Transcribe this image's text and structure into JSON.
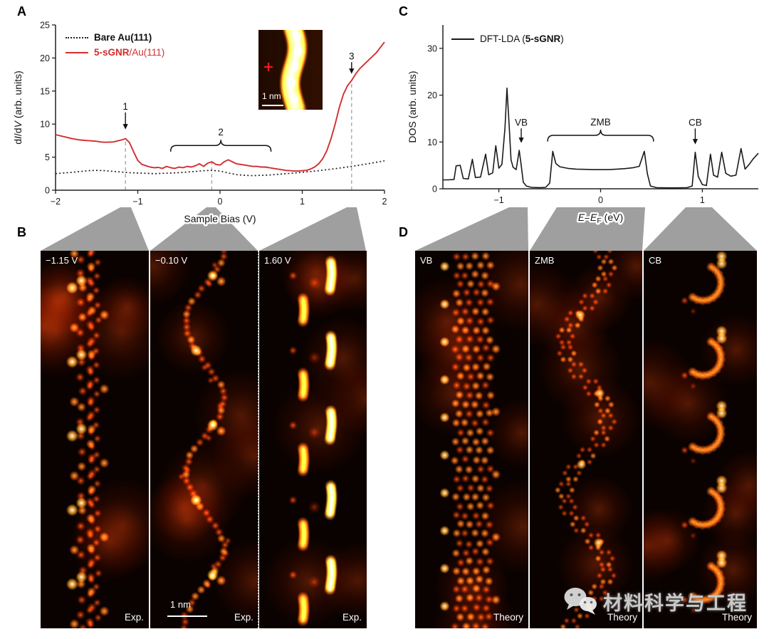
{
  "figure": {
    "panel_labels": {
      "a": "A",
      "b": "B",
      "c": "C",
      "d": "D"
    }
  },
  "panel_a": {
    "legend": [
      {
        "bold": "Bare Au(111)",
        "rest": "",
        "color": "#1a1a1a",
        "line": "dotted"
      },
      {
        "bold": "5-sGNR",
        "rest": "/Au(111)",
        "color": "#d42e2e",
        "line": "solid"
      }
    ],
    "inset": {
      "scale_label": "1 nm",
      "marker": "red-cross"
    }
  },
  "panel_c": {
    "legend": {
      "pre": "DFT-LDA (",
      "bold": "5-sGNR",
      "post": ")"
    }
  },
  "chart_data": [
    {
      "id": "didv",
      "type": "line",
      "xlabel": "Sample Bias (V)",
      "ylabel": "dI/dV (arb. units)",
      "xlabel_parts": [
        {
          "t": "Sample Bias (V)"
        }
      ],
      "ylabel_parts": [
        {
          "t": "d"
        },
        {
          "t": "I",
          "i": true
        },
        {
          "t": "/d"
        },
        {
          "t": "V",
          "i": true
        },
        {
          "t": " (arb. units)"
        }
      ],
      "xlim": [
        -2,
        2
      ],
      "ylim": [
        0,
        25
      ],
      "xticks": [
        {
          "v": -2,
          "label": "−2"
        },
        {
          "v": -1,
          "label": "−1"
        },
        {
          "v": 0,
          "label": "0"
        },
        {
          "v": 1,
          "label": "1"
        },
        {
          "v": 2,
          "label": "2"
        }
      ],
      "yticks": [
        {
          "v": 0,
          "label": "0"
        },
        {
          "v": 5,
          "label": "5"
        },
        {
          "v": 10,
          "label": "10"
        },
        {
          "v": 15,
          "label": "15"
        },
        {
          "v": 20,
          "label": "20"
        },
        {
          "v": 25,
          "label": "25"
        }
      ],
      "series": [
        {
          "name": "Bare Au(111)",
          "color": "#222222",
          "dash": "dotted",
          "width": 1.7,
          "points": [
            [
              -2,
              2.5
            ],
            [
              -1.8,
              2.7
            ],
            [
              -1.6,
              2.95
            ],
            [
              -1.5,
              3.0
            ],
            [
              -1.4,
              2.95
            ],
            [
              -1.3,
              2.85
            ],
            [
              -1.2,
              2.75
            ],
            [
              -1.1,
              2.65
            ],
            [
              -1.0,
              2.6
            ],
            [
              -0.9,
              2.55
            ],
            [
              -0.8,
              2.5
            ],
            [
              -0.7,
              2.55
            ],
            [
              -0.6,
              2.6
            ],
            [
              -0.5,
              2.65
            ],
            [
              -0.4,
              2.75
            ],
            [
              -0.3,
              2.85
            ],
            [
              -0.2,
              2.95
            ],
            [
              -0.1,
              3.0
            ],
            [
              0,
              2.9
            ],
            [
              0.1,
              2.6
            ],
            [
              0.2,
              2.35
            ],
            [
              0.3,
              2.25
            ],
            [
              0.4,
              2.2
            ],
            [
              0.5,
              2.25
            ],
            [
              0.6,
              2.3
            ],
            [
              0.7,
              2.4
            ],
            [
              0.8,
              2.5
            ],
            [
              0.9,
              2.6
            ],
            [
              1.0,
              2.7
            ],
            [
              1.2,
              2.95
            ],
            [
              1.4,
              3.25
            ],
            [
              1.6,
              3.6
            ],
            [
              1.8,
              4.0
            ],
            [
              2.0,
              4.45
            ]
          ]
        },
        {
          "name": "5-sGNR/Au(111)",
          "color": "#d42e2e",
          "dash": "solid",
          "width": 1.9,
          "points": [
            [
              -2,
              8.4
            ],
            [
              -1.9,
              8.1
            ],
            [
              -1.8,
              7.8
            ],
            [
              -1.7,
              7.6
            ],
            [
              -1.6,
              7.5
            ],
            [
              -1.5,
              7.4
            ],
            [
              -1.45,
              7.3
            ],
            [
              -1.4,
              7.25
            ],
            [
              -1.3,
              7.3
            ],
            [
              -1.25,
              7.45
            ],
            [
              -1.2,
              7.6
            ],
            [
              -1.15,
              7.8
            ],
            [
              -1.1,
              7.2
            ],
            [
              -1.05,
              5.8
            ],
            [
              -1.0,
              4.5
            ],
            [
              -0.95,
              3.9
            ],
            [
              -0.9,
              3.7
            ],
            [
              -0.85,
              3.5
            ],
            [
              -0.8,
              3.4
            ],
            [
              -0.75,
              3.45
            ],
            [
              -0.7,
              3.3
            ],
            [
              -0.65,
              3.6
            ],
            [
              -0.6,
              3.4
            ],
            [
              -0.55,
              3.3
            ],
            [
              -0.5,
              3.5
            ],
            [
              -0.45,
              3.4
            ],
            [
              -0.4,
              3.6
            ],
            [
              -0.35,
              3.5
            ],
            [
              -0.3,
              3.7
            ],
            [
              -0.25,
              4.0
            ],
            [
              -0.2,
              3.6
            ],
            [
              -0.15,
              4.1
            ],
            [
              -0.1,
              4.3
            ],
            [
              -0.05,
              3.9
            ],
            [
              0,
              3.8
            ],
            [
              0.05,
              4.3
            ],
            [
              0.1,
              4.6
            ],
            [
              0.15,
              4.3
            ],
            [
              0.2,
              4.0
            ],
            [
              0.25,
              3.9
            ],
            [
              0.3,
              3.8
            ],
            [
              0.35,
              3.7
            ],
            [
              0.4,
              3.6
            ],
            [
              0.45,
              3.6
            ],
            [
              0.5,
              3.5
            ],
            [
              0.55,
              3.5
            ],
            [
              0.6,
              3.4
            ],
            [
              0.65,
              3.3
            ],
            [
              0.7,
              3.2
            ],
            [
              0.75,
              3.1
            ],
            [
              0.8,
              3.0
            ],
            [
              0.85,
              2.95
            ],
            [
              0.9,
              2.9
            ],
            [
              0.95,
              2.9
            ],
            [
              1.0,
              2.95
            ],
            [
              1.05,
              3.0
            ],
            [
              1.1,
              3.2
            ],
            [
              1.15,
              3.5
            ],
            [
              1.2,
              4.0
            ],
            [
              1.25,
              4.8
            ],
            [
              1.3,
              6.0
            ],
            [
              1.35,
              7.8
            ],
            [
              1.4,
              10.0
            ],
            [
              1.45,
              12.5
            ],
            [
              1.5,
              14.5
            ],
            [
              1.55,
              15.8
            ],
            [
              1.6,
              16.6
            ],
            [
              1.65,
              17.6
            ],
            [
              1.7,
              18.4
            ],
            [
              1.75,
              19.0
            ],
            [
              1.8,
              19.6
            ],
            [
              1.85,
              20.2
            ],
            [
              1.9,
              20.8
            ],
            [
              1.95,
              21.6
            ],
            [
              2.0,
              22.4
            ]
          ]
        }
      ],
      "annotations": {
        "arrows": [
          {
            "label": "1",
            "x": -1.15,
            "label_y": 12.2,
            "tip_y": 9.2
          },
          {
            "label": "3",
            "x": 1.6,
            "label_y": 19.8,
            "tip_y": 17.6
          }
        ],
        "brace": {
          "label": "2",
          "x1": -0.6,
          "x2": 0.62,
          "y": 5.9
        },
        "guides": [
          {
            "x": -1.15,
            "y_top": 7.7
          },
          {
            "x": -0.1,
            "y_top": 4.3
          },
          {
            "x": 1.6,
            "y_top": 16.6
          }
        ]
      }
    },
    {
      "id": "dos",
      "type": "line",
      "xlabel": "E–EF (eV)",
      "ylabel": "DOS (arb. units)",
      "xlabel_parts": [
        {
          "t": "E",
          "i": true
        },
        {
          "t": "–"
        },
        {
          "t": "E",
          "i": true
        },
        {
          "t": "F",
          "sub": true
        },
        {
          "t": " (eV)"
        }
      ],
      "ylabel_parts": [
        {
          "t": "DOS (arb. units)"
        }
      ],
      "xlim": [
        -1.55,
        1.55
      ],
      "ylim": [
        0,
        35
      ],
      "xticks": [
        {
          "v": -1,
          "label": "−1"
        },
        {
          "v": 0,
          "label": "0"
        },
        {
          "v": 1,
          "label": "1"
        }
      ],
      "yticks": [
        {
          "v": 0,
          "label": "0"
        },
        {
          "v": 10,
          "label": "10"
        },
        {
          "v": 20,
          "label": "20"
        },
        {
          "v": 30,
          "label": "30"
        }
      ],
      "series": [
        {
          "name": "DFT-LDA (5-sGNR)",
          "color": "#1a1a1a",
          "dash": "solid",
          "width": 1.6,
          "points": [
            [
              -1.55,
              1.9
            ],
            [
              -1.5,
              1.9
            ],
            [
              -1.44,
              2.0
            ],
            [
              -1.42,
              4.9
            ],
            [
              -1.38,
              5.0
            ],
            [
              -1.35,
              2.2
            ],
            [
              -1.3,
              2.1
            ],
            [
              -1.26,
              6.3
            ],
            [
              -1.23,
              2.4
            ],
            [
              -1.18,
              2.5
            ],
            [
              -1.13,
              7.4
            ],
            [
              -1.1,
              3.0
            ],
            [
              -1.06,
              3.4
            ],
            [
              -1.03,
              9.2
            ],
            [
              -1.0,
              4.4
            ],
            [
              -0.97,
              5.2
            ],
            [
              -0.94,
              13.0
            ],
            [
              -0.92,
              21.5
            ],
            [
              -0.9,
              14.0
            ],
            [
              -0.88,
              6.2
            ],
            [
              -0.86,
              4.6
            ],
            [
              -0.83,
              4.1
            ],
            [
              -0.8,
              8.2
            ],
            [
              -0.78,
              5.0
            ],
            [
              -0.76,
              1.4
            ],
            [
              -0.73,
              0.6
            ],
            [
              -0.68,
              0.3
            ],
            [
              -0.6,
              0.25
            ],
            [
              -0.54,
              0.3
            ],
            [
              -0.5,
              1.2
            ],
            [
              -0.47,
              8.0
            ],
            [
              -0.44,
              5.4
            ],
            [
              -0.4,
              4.7
            ],
            [
              -0.32,
              4.35
            ],
            [
              -0.24,
              4.2
            ],
            [
              -0.16,
              4.15
            ],
            [
              -0.08,
              4.1
            ],
            [
              0,
              4.1
            ],
            [
              0.08,
              4.1
            ],
            [
              0.16,
              4.2
            ],
            [
              0.24,
              4.3
            ],
            [
              0.32,
              4.5
            ],
            [
              0.38,
              4.8
            ],
            [
              0.43,
              8.0
            ],
            [
              0.46,
              3.2
            ],
            [
              0.49,
              0.6
            ],
            [
              0.55,
              0.25
            ],
            [
              0.65,
              0.2
            ],
            [
              0.75,
              0.2
            ],
            [
              0.85,
              0.25
            ],
            [
              0.9,
              0.6
            ],
            [
              0.93,
              7.8
            ],
            [
              0.96,
              2.6
            ],
            [
              1.0,
              0.9
            ],
            [
              1.04,
              0.7
            ],
            [
              1.08,
              7.4
            ],
            [
              1.11,
              2.9
            ],
            [
              1.15,
              2.5
            ],
            [
              1.19,
              7.8
            ],
            [
              1.23,
              3.3
            ],
            [
              1.28,
              2.7
            ],
            [
              1.33,
              2.9
            ],
            [
              1.38,
              8.6
            ],
            [
              1.42,
              4.2
            ],
            [
              1.46,
              5.2
            ],
            [
              1.5,
              6.4
            ],
            [
              1.55,
              7.6
            ]
          ]
        }
      ],
      "annotations": {
        "arrows": [
          {
            "label": "VB",
            "x": -0.78,
            "label_y": 13.5,
            "tip_y": 9.8
          },
          {
            "label": "CB",
            "x": 0.93,
            "label_y": 13.5,
            "tip_y": 9.5
          }
        ],
        "brace": {
          "label": "ZMB",
          "x1": -0.52,
          "x2": 0.52,
          "y": 10.2
        },
        "guides": []
      }
    }
  ],
  "panel_b": {
    "images": [
      {
        "bias": "−1.15 V",
        "corner": "Exp."
      },
      {
        "bias": "−0.10 V",
        "corner": "Exp.",
        "scalebar": "1 nm"
      },
      {
        "bias": "1.60 V",
        "corner": "Exp."
      }
    ]
  },
  "panel_d": {
    "images": [
      {
        "band": "VB",
        "corner": "Theory"
      },
      {
        "band": "ZMB",
        "corner": "Theory"
      },
      {
        "band": "CB",
        "corner": "Theory"
      }
    ]
  },
  "watermark": {
    "text": "材料科学与工程",
    "icon": "wechat-icon"
  }
}
